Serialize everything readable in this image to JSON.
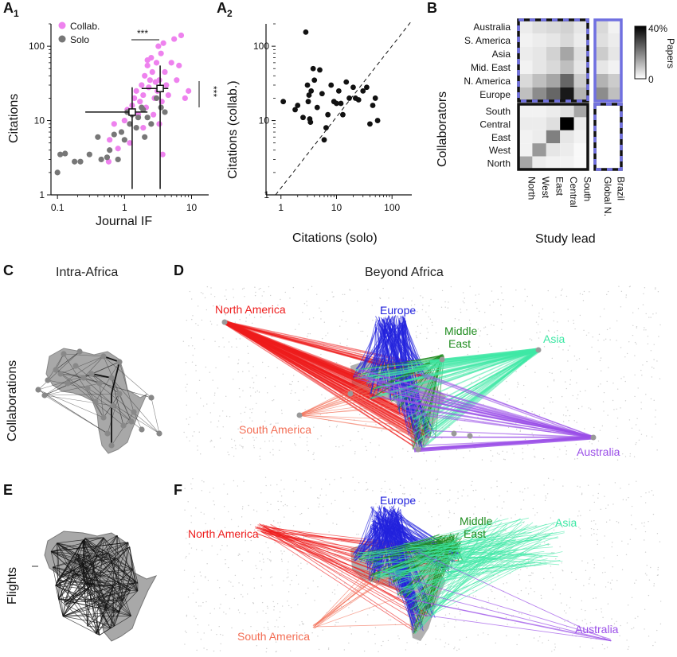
{
  "panels": {
    "a1": {
      "letter": "A",
      "sub": "1"
    },
    "a2": {
      "letter": "A",
      "sub": "2"
    },
    "b": {
      "letter": "B"
    },
    "c": {
      "letter": "C",
      "title": "Intra-Africa"
    },
    "d": {
      "letter": "D",
      "title": "Beyond Africa"
    },
    "e": {
      "letter": "E"
    },
    "f": {
      "letter": "F"
    }
  },
  "row_labels": {
    "collaborations": "Collaborations",
    "flights": "Flights"
  },
  "colors": {
    "collab": "#ee82ee",
    "solo": "#777777",
    "north_america": "#ee1c1c",
    "south_america": "#f36e55",
    "europe": "#2222dd",
    "middle_east": "#1f8c1f",
    "asia": "#3ee8a5",
    "australia": "#9b4fe8",
    "matrix_label": "#7070e0"
  },
  "chart_data": [
    {
      "id": "A1",
      "type": "scatter",
      "xlabel": "Journal IF",
      "ylabel": "Citations",
      "xscale": "log",
      "yscale": "log",
      "xlim": [
        0.08,
        18
      ],
      "ylim": [
        1,
        200
      ],
      "xticks": [
        {
          "v": 0.1,
          "t": "0.1"
        },
        {
          "v": 1,
          "t": "1"
        },
        {
          "v": 10,
          "t": "10"
        }
      ],
      "yticks": [
        {
          "v": 1,
          "t": "1"
        },
        {
          "v": 10,
          "t": "10"
        },
        {
          "v": 100,
          "t": "100"
        }
      ],
      "legend": [
        "Collab.",
        "Solo"
      ],
      "significance": [
        "***",
        "***"
      ],
      "series": [
        {
          "name": "Collab.",
          "points": [
            [
              0.58,
              2.8
            ],
            [
              0.6,
              5.5
            ],
            [
              0.7,
              9
            ],
            [
              0.8,
              4.2
            ],
            [
              1.0,
              10
            ],
            [
              1.1,
              14
            ],
            [
              1.2,
              5
            ],
            [
              1.3,
              16
            ],
            [
              1.4,
              20
            ],
            [
              1.5,
              25
            ],
            [
              1.6,
              12
            ],
            [
              1.7,
              18
            ],
            [
              1.8,
              30
            ],
            [
              1.9,
              22
            ],
            [
              2.0,
              40
            ],
            [
              2.1,
              15
            ],
            [
              2.2,
              55
            ],
            [
              2.3,
              28
            ],
            [
              2.4,
              35
            ],
            [
              2.5,
              70
            ],
            [
              2.6,
              45
            ],
            [
              2.8,
              20
            ],
            [
              3.0,
              60
            ],
            [
              3.1,
              25
            ],
            [
              3.2,
              100
            ],
            [
              3.3,
              35
            ],
            [
              3.5,
              80
            ],
            [
              3.6,
              18
            ],
            [
              3.7,
              3.5
            ],
            [
              3.8,
              110
            ],
            [
              4.0,
              45
            ],
            [
              4.2,
              30
            ],
            [
              4.5,
              22
            ],
            [
              5.0,
              60
            ],
            [
              5.5,
              125
            ],
            [
              6.0,
              35
            ],
            [
              6.5,
              55
            ],
            [
              7.0,
              140
            ],
            [
              8.0,
              20
            ],
            [
              9.0,
              25
            ],
            [
              3.3,
              9
            ],
            [
              2.7,
              12
            ],
            [
              1.9,
              8
            ],
            [
              2.2,
              65
            ],
            [
              2.9,
              33
            ]
          ]
        },
        {
          "name": "Solo",
          "points": [
            [
              0.1,
              2
            ],
            [
              0.11,
              3.5
            ],
            [
              0.13,
              3.6
            ],
            [
              0.18,
              2.8
            ],
            [
              0.22,
              2.8
            ],
            [
              0.3,
              3.5
            ],
            [
              0.4,
              6
            ],
            [
              0.45,
              3
            ],
            [
              0.55,
              3.2
            ],
            [
              0.6,
              4
            ],
            [
              0.7,
              6.5
            ],
            [
              0.8,
              3
            ],
            [
              0.9,
              7
            ],
            [
              1.0,
              5.5
            ],
            [
              1.1,
              13
            ],
            [
              1.2,
              9
            ],
            [
              1.3,
              12
            ],
            [
              1.5,
              8
            ],
            [
              1.6,
              11
            ],
            [
              1.8,
              15
            ],
            [
              2.0,
              6
            ],
            [
              2.2,
              11
            ],
            [
              2.5,
              9
            ],
            [
              3.0,
              20
            ],
            [
              3.5,
              15
            ],
            [
              4.0,
              13
            ],
            [
              1.9,
              14
            ]
          ]
        }
      ],
      "summary_markers": [
        {
          "x": 1.3,
          "y": 13,
          "xerr": [
            0.26,
            2.2
          ],
          "yerr": [
            1.2,
            28
          ]
        },
        {
          "x": 3.4,
          "y": 27,
          "xerr": [
            1.8,
            4.5
          ],
          "yerr": [
            1.2,
            55
          ]
        }
      ]
    },
    {
      "id": "A2",
      "type": "scatter",
      "xlabel": "Citations (solo)",
      "ylabel": "Citations (collab.)",
      "xscale": "log",
      "yscale": "log",
      "xlim": [
        0.8,
        180
      ],
      "ylim": [
        1,
        200
      ],
      "xticks": [
        {
          "v": 1,
          "t": "1"
        },
        {
          "v": 10,
          "t": "10"
        },
        {
          "v": 100,
          "t": "100"
        }
      ],
      "yticks": [
        {
          "v": 1,
          "t": "1"
        },
        {
          "v": 10,
          "t": "10"
        },
        {
          "v": 100,
          "t": "100"
        }
      ],
      "diagonal": true,
      "series": [
        {
          "name": "",
          "points": [
            [
              1.1,
              18
            ],
            [
              1.8,
              14
            ],
            [
              2.0,
              16
            ],
            [
              2.5,
              11
            ],
            [
              2.8,
              155
            ],
            [
              3.0,
              30
            ],
            [
              3.1,
              18
            ],
            [
              3.2,
              22
            ],
            [
              3.3,
              10.5
            ],
            [
              3.4,
              9.5
            ],
            [
              3.5,
              25
            ],
            [
              3.8,
              50
            ],
            [
              4.0,
              35
            ],
            [
              4.5,
              15
            ],
            [
              5.0,
              48
            ],
            [
              5.5,
              23
            ],
            [
              6.0,
              5.5
            ],
            [
              6.5,
              8
            ],
            [
              7.0,
              12
            ],
            [
              8.0,
              30
            ],
            [
              9.0,
              18
            ],
            [
              10,
              17
            ],
            [
              11,
              25
            ],
            [
              12,
              17
            ],
            [
              13,
              12
            ],
            [
              15,
              33
            ],
            [
              17,
              20
            ],
            [
              20,
              28
            ],
            [
              22,
              20
            ],
            [
              25,
              19
            ],
            [
              30,
              25
            ],
            [
              35,
              28
            ],
            [
              40,
              9
            ],
            [
              45,
              16
            ],
            [
              50,
              20
            ],
            [
              55,
              10
            ]
          ]
        }
      ]
    },
    {
      "id": "B",
      "type": "heatmap",
      "ylabel": "Collaborators",
      "xlabel": "Study lead",
      "rows_top": [
        "Australia",
        "S. America",
        "Asia",
        "Mid. East",
        "N. America",
        "Europe"
      ],
      "rows_bottom": [
        "South",
        "Central",
        "East",
        "West",
        "North"
      ],
      "cols_main": [
        "North",
        "West",
        "East",
        "Central",
        "South"
      ],
      "cols_side": [
        "Global N.",
        "Brazil"
      ],
      "colorbar": {
        "max_label": "40%",
        "min_label": "0",
        "title": "Papers",
        "range": [
          0,
          40
        ]
      },
      "top_values": [
        [
          3,
          5,
          6,
          7,
          4
        ],
        [
          2,
          3,
          4,
          6,
          3
        ],
        [
          3,
          4,
          7,
          14,
          5
        ],
        [
          2,
          4,
          6,
          10,
          4
        ],
        [
          6,
          10,
          14,
          24,
          8
        ],
        [
          10,
          18,
          24,
          36,
          12
        ]
      ],
      "top_side": [
        [
          6,
          2
        ],
        [
          5,
          3
        ],
        [
          8,
          4
        ],
        [
          4,
          2
        ],
        [
          12,
          8
        ],
        [
          18,
          10
        ]
      ],
      "bottom_values": [
        [
          2,
          2,
          3,
          5,
          14
        ],
        [
          3,
          3,
          5,
          40,
          3
        ],
        [
          2,
          3,
          20,
          4,
          2
        ],
        [
          2,
          16,
          4,
          3,
          1
        ],
        [
          14,
          3,
          2,
          2,
          1
        ]
      ],
      "bottom_side": [
        [
          0,
          0
        ],
        [
          0,
          0
        ],
        [
          0,
          0
        ],
        [
          0,
          0
        ],
        [
          0,
          0
        ]
      ]
    }
  ],
  "map_labels": {
    "d": {
      "north_america": "North America",
      "south_america": "South America",
      "europe": "Europe",
      "middle_east_1": "Middle",
      "middle_east_2": "East",
      "asia": "Asia",
      "australia": "Australia"
    },
    "f": {
      "north_america": "North America",
      "south_america": "South America",
      "europe": "Europe",
      "middle_east_1": "Middle",
      "middle_east_2": "East",
      "asia": "Asia",
      "australia": "Australia"
    }
  }
}
